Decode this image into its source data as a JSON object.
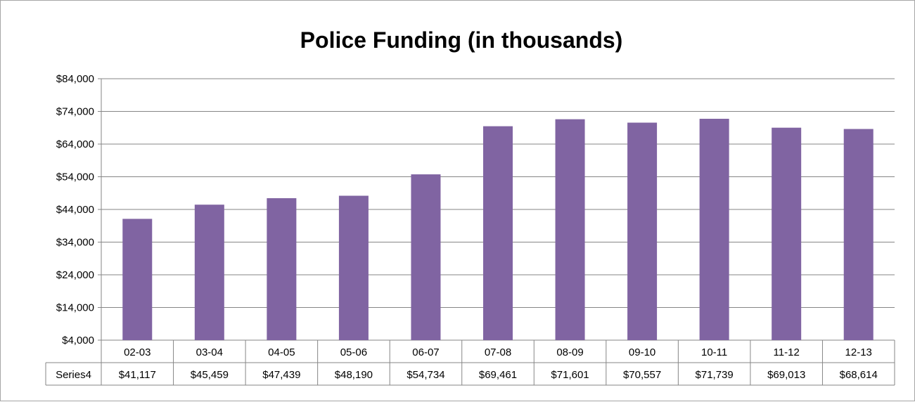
{
  "chart_data": {
    "type": "bar",
    "title": "Police Funding (in thousands)",
    "categories": [
      "02-03",
      "03-04",
      "04-05",
      "05-06",
      "06-07",
      "07-08",
      "08-09",
      "09-10",
      "10-11",
      "11-12",
      "12-13"
    ],
    "series": [
      {
        "name": "Series4",
        "values": [
          41117,
          45459,
          47439,
          48190,
          54734,
          69461,
          71601,
          70557,
          71739,
          69013,
          68614
        ],
        "value_labels": [
          "$41,117",
          "$45,459",
          "$47,439",
          "$48,190",
          "$54,734",
          "$69,461",
          "$71,601",
          "$70,557",
          "$71,739",
          "$69,013",
          "$68,614"
        ],
        "color": "#8064a2"
      }
    ],
    "ylim": [
      4000,
      84000
    ],
    "yticks": [
      4000,
      14000,
      24000,
      34000,
      44000,
      54000,
      64000,
      74000,
      84000
    ],
    "ytick_labels": [
      "$4,000",
      "$14,000",
      "$24,000",
      "$34,000",
      "$44,000",
      "$54,000",
      "$64,000",
      "$74,000",
      "$84,000"
    ],
    "xlabel": "",
    "ylabel": "",
    "grid": "horizontal",
    "legend": "none",
    "data_table": true,
    "gridline_color": "#868686",
    "frame_color": "#a6a6a6"
  }
}
